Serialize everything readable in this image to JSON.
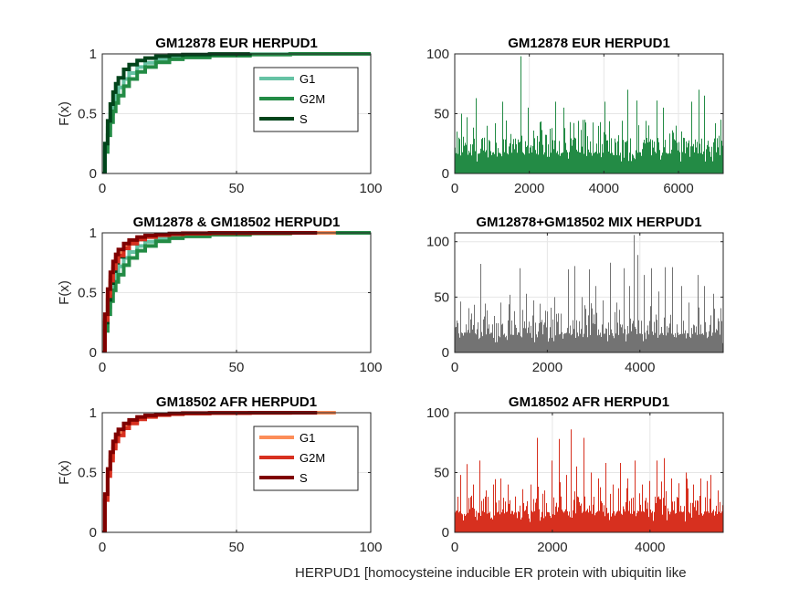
{
  "figure": {
    "xlabel": "HERPUD1 [homocysteine inducible ER protein with ubiquitin like"
  },
  "chart_data": [
    {
      "type": "line",
      "kind": "ecdf",
      "title": "GM12878 EUR HERPUD1",
      "ylabel": "F(x)",
      "xlim": [
        0,
        100
      ],
      "ylim": [
        0,
        1
      ],
      "xticks": [
        "0",
        "50",
        "100"
      ],
      "yticks": [
        "0",
        "0.5",
        "1"
      ],
      "grid": true,
      "legend": "top-right",
      "series": [
        {
          "name": "G1",
          "color": "#66c2a4",
          "x": [
            0,
            1,
            2,
            3,
            4,
            5,
            6,
            8,
            10,
            13,
            16,
            20,
            25,
            30,
            40,
            55,
            70,
            100
          ],
          "y": [
            0,
            0.22,
            0.38,
            0.5,
            0.6,
            0.67,
            0.72,
            0.79,
            0.84,
            0.89,
            0.925,
            0.95,
            0.97,
            0.98,
            0.99,
            0.997,
            1,
            1
          ]
        },
        {
          "name": "G2M",
          "color": "#238b45",
          "x": [
            0,
            1,
            2,
            3,
            4,
            5,
            6,
            8,
            10,
            13,
            16,
            20,
            25,
            30,
            40,
            55,
            70,
            100
          ],
          "y": [
            0,
            0.18,
            0.32,
            0.43,
            0.52,
            0.59,
            0.65,
            0.73,
            0.79,
            0.85,
            0.89,
            0.93,
            0.955,
            0.97,
            0.985,
            0.995,
            1,
            1
          ]
        },
        {
          "name": "S",
          "color": "#00441b",
          "x": [
            0,
            1,
            2,
            3,
            4,
            5,
            6,
            8,
            10,
            13,
            16,
            20,
            25,
            30,
            40,
            55
          ],
          "y": [
            0,
            0.25,
            0.44,
            0.58,
            0.68,
            0.75,
            0.8,
            0.87,
            0.91,
            0.945,
            0.965,
            0.98,
            0.99,
            0.995,
            0.999,
            1
          ]
        }
      ]
    },
    {
      "type": "bar",
      "title": "GM12878 EUR HERPUD1",
      "color": "#238b45",
      "xlim": [
        0,
        7200
      ],
      "ylim": [
        0,
        100
      ],
      "xticks": [
        "0",
        "2000",
        "4000",
        "6000"
      ],
      "yticks": [
        "0",
        "50",
        "100"
      ],
      "grid": true,
      "n": 7200,
      "peaks": [
        [
          180,
          50
        ],
        [
          330,
          47
        ],
        [
          580,
          63
        ],
        [
          800,
          30
        ],
        [
          1100,
          42
        ],
        [
          1290,
          60
        ],
        [
          1500,
          33
        ],
        [
          1780,
          98
        ],
        [
          1970,
          55
        ],
        [
          2300,
          43
        ],
        [
          2610,
          38
        ],
        [
          2700,
          60
        ],
        [
          2920,
          55
        ],
        [
          3090,
          43
        ],
        [
          3320,
          44
        ],
        [
          3480,
          45
        ],
        [
          3900,
          43
        ],
        [
          4020,
          60
        ],
        [
          4400,
          32
        ],
        [
          4640,
          70
        ],
        [
          4880,
          61
        ],
        [
          5120,
          44
        ],
        [
          5420,
          61
        ],
        [
          5600,
          55
        ],
        [
          5850,
          36
        ],
        [
          6350,
          60
        ],
        [
          6550,
          70
        ],
        [
          6690,
          65
        ],
        [
          7000,
          42
        ],
        [
          7150,
          45
        ]
      ]
    },
    {
      "type": "line",
      "kind": "ecdf",
      "title": "GM12878 & GM18502 HERPUD1",
      "ylabel": "F(x)",
      "xlim": [
        0,
        100
      ],
      "ylim": [
        0,
        1
      ],
      "xticks": [
        "0",
        "50",
        "100"
      ],
      "yticks": [
        "0",
        "0.5",
        "1"
      ],
      "grid": true,
      "series": [
        {
          "color": "#66c2a4",
          "x": [
            0,
            1,
            2,
            3,
            4,
            5,
            6,
            8,
            10,
            13,
            16,
            20,
            25,
            30,
            40,
            55,
            70,
            100
          ],
          "y": [
            0,
            0.22,
            0.38,
            0.5,
            0.6,
            0.67,
            0.72,
            0.79,
            0.84,
            0.89,
            0.925,
            0.95,
            0.97,
            0.98,
            0.99,
            0.997,
            1,
            1
          ]
        },
        {
          "color": "#238b45",
          "x": [
            0,
            1,
            2,
            3,
            4,
            5,
            6,
            8,
            10,
            13,
            16,
            20,
            25,
            30,
            40,
            55,
            70,
            100
          ],
          "y": [
            0,
            0.18,
            0.32,
            0.43,
            0.52,
            0.59,
            0.65,
            0.73,
            0.79,
            0.85,
            0.89,
            0.93,
            0.955,
            0.97,
            0.985,
            0.995,
            1,
            1
          ]
        },
        {
          "color": "#00441b",
          "x": [
            0,
            1,
            2,
            3,
            4,
            5,
            6,
            8,
            10,
            13,
            16,
            20,
            25,
            30,
            40,
            55
          ],
          "y": [
            0,
            0.25,
            0.44,
            0.58,
            0.68,
            0.75,
            0.8,
            0.87,
            0.91,
            0.945,
            0.965,
            0.98,
            0.99,
            0.995,
            0.999,
            1
          ]
        },
        {
          "color": "#fc8d59",
          "x": [
            0,
            1,
            2,
            3,
            4,
            5,
            6,
            8,
            10,
            13,
            16,
            20,
            25,
            30,
            40,
            55,
            70,
            87
          ],
          "y": [
            0,
            0.3,
            0.5,
            0.63,
            0.72,
            0.78,
            0.83,
            0.88,
            0.92,
            0.95,
            0.97,
            0.982,
            0.99,
            0.994,
            0.997,
            0.999,
            1,
            1
          ]
        },
        {
          "color": "#d7301f",
          "x": [
            0,
            1,
            2,
            3,
            4,
            5,
            6,
            8,
            10,
            13,
            16,
            20,
            25,
            30,
            40,
            55,
            70,
            80
          ],
          "y": [
            0,
            0.27,
            0.47,
            0.6,
            0.7,
            0.76,
            0.81,
            0.87,
            0.91,
            0.945,
            0.965,
            0.98,
            0.988,
            0.993,
            0.997,
            0.999,
            1,
            1
          ]
        },
        {
          "color": "#7f0000",
          "x": [
            0,
            1,
            2,
            3,
            4,
            5,
            6,
            8,
            10,
            13,
            16,
            20,
            25,
            30,
            40,
            55,
            70,
            80
          ],
          "y": [
            0,
            0.32,
            0.53,
            0.67,
            0.76,
            0.82,
            0.86,
            0.91,
            0.94,
            0.965,
            0.978,
            0.988,
            0.994,
            0.997,
            0.999,
            1,
            1,
            1
          ]
        }
      ]
    },
    {
      "type": "bar",
      "title": "GM12878+GM18502 MIX HERPUD1",
      "color": "#737373",
      "xlim": [
        0,
        5800
      ],
      "ylim": [
        0,
        108
      ],
      "xticks": [
        "0",
        "2000",
        "4000"
      ],
      "yticks": [
        "0",
        "50",
        "100"
      ],
      "grid": true,
      "n": 5800,
      "peaks": [
        [
          130,
          46
        ],
        [
          300,
          40
        ],
        [
          420,
          43
        ],
        [
          560,
          80
        ],
        [
          700,
          38
        ],
        [
          850,
          33
        ],
        [
          1000,
          45
        ],
        [
          1200,
          52
        ],
        [
          1400,
          76
        ],
        [
          1550,
          53
        ],
        [
          1700,
          47
        ],
        [
          1850,
          44
        ],
        [
          2000,
          37
        ],
        [
          2150,
          50
        ],
        [
          2300,
          35
        ],
        [
          2450,
          75
        ],
        [
          2600,
          78
        ],
        [
          2760,
          50
        ],
        [
          2900,
          75
        ],
        [
          3050,
          60
        ],
        [
          3200,
          47
        ],
        [
          3360,
          81
        ],
        [
          3500,
          45
        ],
        [
          3650,
          76
        ],
        [
          3780,
          60
        ],
        [
          3880,
          106
        ],
        [
          3950,
          88
        ],
        [
          4100,
          70
        ],
        [
          4250,
          76
        ],
        [
          4400,
          55
        ],
        [
          4540,
          77
        ],
        [
          4700,
          77
        ],
        [
          4900,
          60
        ],
        [
          5050,
          45
        ],
        [
          5250,
          70
        ],
        [
          5400,
          60
        ],
        [
          5600,
          53
        ],
        [
          5750,
          40
        ]
      ]
    },
    {
      "type": "line",
      "kind": "ecdf",
      "title": "GM18502 AFR HERPUD1",
      "ylabel": "F(x)",
      "xlim": [
        0,
        100
      ],
      "ylim": [
        0,
        1
      ],
      "xticks": [
        "0",
        "50",
        "100"
      ],
      "yticks": [
        "0",
        "0.5",
        "1"
      ],
      "grid": true,
      "legend": "top-right",
      "series": [
        {
          "name": "G1",
          "color": "#fc8d59",
          "x": [
            0,
            1,
            2,
            3,
            4,
            5,
            6,
            8,
            10,
            13,
            16,
            20,
            25,
            30,
            40,
            55,
            70,
            87
          ],
          "y": [
            0,
            0.3,
            0.5,
            0.63,
            0.72,
            0.78,
            0.83,
            0.88,
            0.92,
            0.95,
            0.97,
            0.982,
            0.99,
            0.994,
            0.997,
            0.999,
            1,
            1
          ]
        },
        {
          "name": "G2M",
          "color": "#d7301f",
          "x": [
            0,
            1,
            2,
            3,
            4,
            5,
            6,
            8,
            10,
            13,
            16,
            20,
            25,
            30,
            40,
            55,
            70,
            80
          ],
          "y": [
            0,
            0.27,
            0.47,
            0.6,
            0.7,
            0.76,
            0.81,
            0.87,
            0.91,
            0.945,
            0.965,
            0.98,
            0.988,
            0.993,
            0.997,
            0.999,
            1,
            1
          ]
        },
        {
          "name": "S",
          "color": "#7f0000",
          "x": [
            0,
            1,
            2,
            3,
            4,
            5,
            6,
            8,
            10,
            13,
            16,
            20,
            25,
            30,
            40,
            55,
            70,
            80
          ],
          "y": [
            0,
            0.32,
            0.53,
            0.67,
            0.76,
            0.82,
            0.86,
            0.91,
            0.94,
            0.965,
            0.978,
            0.988,
            0.994,
            0.997,
            0.999,
            1,
            1,
            1
          ]
        }
      ]
    },
    {
      "type": "bar",
      "title": "GM18502 AFR HERPUD1",
      "color": "#d7301f",
      "xlim": [
        0,
        5500
      ],
      "ylim": [
        0,
        100
      ],
      "xticks": [
        "0",
        "2000",
        "4000"
      ],
      "yticks": [
        "0",
        "50",
        "100"
      ],
      "grid": true,
      "n": 5500,
      "peaks": [
        [
          120,
          48
        ],
        [
          250,
          57
        ],
        [
          380,
          40
        ],
        [
          520,
          60
        ],
        [
          640,
          35
        ],
        [
          800,
          40
        ],
        [
          950,
          45
        ],
        [
          1100,
          40
        ],
        [
          1250,
          30
        ],
        [
          1400,
          36
        ],
        [
          1560,
          40
        ],
        [
          1690,
          79
        ],
        [
          1850,
          35
        ],
        [
          2000,
          60
        ],
        [
          2150,
          78
        ],
        [
          2300,
          48
        ],
        [
          2380,
          86
        ],
        [
          2500,
          55
        ],
        [
          2650,
          79
        ],
        [
          2800,
          50
        ],
        [
          2950,
          45
        ],
        [
          3100,
          58
        ],
        [
          3250,
          40
        ],
        [
          3400,
          58
        ],
        [
          3550,
          45
        ],
        [
          3700,
          60
        ],
        [
          3850,
          40
        ],
        [
          4000,
          43
        ],
        [
          4150,
          60
        ],
        [
          4300,
          62
        ],
        [
          4450,
          45
        ],
        [
          4600,
          41
        ],
        [
          4750,
          50
        ],
        [
          4900,
          40
        ],
        [
          5050,
          45
        ],
        [
          5250,
          48
        ],
        [
          5400,
          35
        ]
      ]
    }
  ]
}
